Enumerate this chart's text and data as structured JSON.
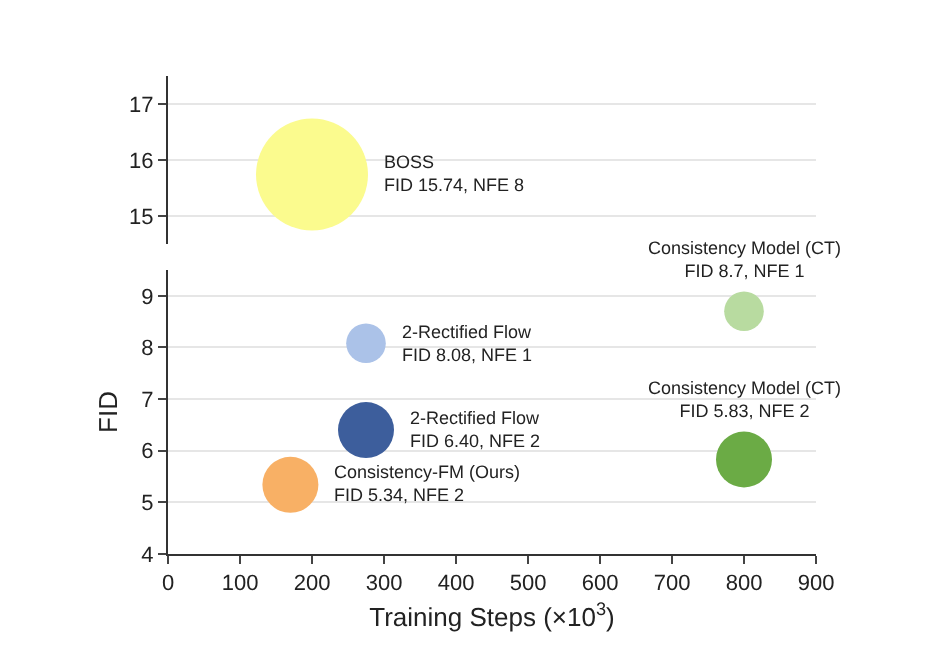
{
  "chart_data": [
    {
      "type": "bubble",
      "x": [
        200
      ],
      "values": [
        15.74
      ],
      "sizes": [
        1
      ],
      "colors": [
        "#fbfb8e"
      ],
      "xlim": [
        0,
        900
      ],
      "xticks": [
        0,
        100,
        200,
        300,
        400,
        500,
        600,
        700,
        800,
        900
      ],
      "ylim": [
        14.5,
        17.5
      ],
      "yticks": [
        15,
        16,
        17
      ],
      "tick_labels": "y",
      "grid": "y",
      "annotations": [
        "BOSS\nFID 15.74, NFE 8"
      ]
    },
    {
      "type": "bubble",
      "x": [
        275,
        275,
        170,
        800,
        800
      ],
      "values": [
        8.08,
        6.4,
        5.34,
        8.7,
        5.83
      ],
      "sizes": [
        0.5,
        1,
        1,
        0.5,
        1
      ],
      "colors": [
        "#abc2e8",
        "#3d5e9c",
        "#f8b065",
        "#b8dba0",
        "#6bab45"
      ],
      "xlabel": "Training Steps (×10$^{3}$)",
      "ylabel": "FID",
      "xlim": [
        0,
        900
      ],
      "xticks": [
        0,
        100,
        200,
        300,
        400,
        500,
        600,
        700,
        800,
        900
      ],
      "ylim": [
        4,
        9.5
      ],
      "yticks": [
        4,
        5,
        6,
        7,
        8,
        9
      ],
      "grid": "y",
      "annotations": [
        "2-Rectified Flow\nFID 8.08, NFE 1",
        "2-Rectified Flow\nFID 6.40, NFE 2",
        "Consistency-FM (Ours)\nFID 5.34, NFE 2",
        "Consistency Model (CT)\nFID 8.7, NFE 1",
        "Consistency Model (CT)\nFID 5.83, NFE 2"
      ]
    }
  ]
}
